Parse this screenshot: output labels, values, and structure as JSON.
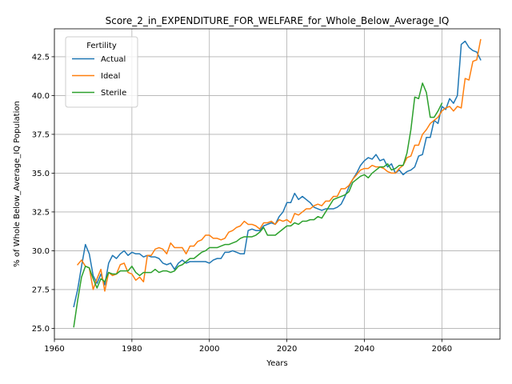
{
  "chart_data": {
    "type": "line",
    "title": "Score_2_in_EXPENDITURE_FOR_WELFARE_for_Whole_Below_Average_IQ",
    "xlabel": "Years",
    "ylabel": "% of Whole Below_Average_IQ Population",
    "xlim": [
      1960,
      2075
    ],
    "ylim": [
      24.3,
      44.3
    ],
    "xticks": [
      1960,
      1980,
      2000,
      2020,
      2040,
      2060
    ],
    "xtick_labels": [
      "1960",
      "1980",
      "2000",
      "2020",
      "2040",
      "2060"
    ],
    "yticks": [
      25.0,
      27.5,
      30.0,
      32.5,
      35.0,
      37.5,
      40.0,
      42.5
    ],
    "ytick_labels": [
      "25.0",
      "27.5",
      "30.0",
      "32.5",
      "35.0",
      "37.5",
      "40.0",
      "42.5"
    ],
    "grid": true,
    "legend": {
      "title": "Fertility",
      "placement": "top-left"
    },
    "series": [
      {
        "name": "Actual",
        "color": "#1f77b4",
        "points": [
          [
            1965,
            26.4
          ],
          [
            1966,
            27.5
          ],
          [
            1967,
            29.0
          ],
          [
            1968,
            30.4
          ],
          [
            1969,
            29.8
          ],
          [
            1970,
            28.4
          ],
          [
            1971,
            27.9
          ],
          [
            1972,
            28.5
          ],
          [
            1973,
            27.8
          ],
          [
            1974,
            29.2
          ],
          [
            1975,
            29.7
          ],
          [
            1976,
            29.5
          ],
          [
            1977,
            29.8
          ],
          [
            1978,
            30.0
          ],
          [
            1979,
            29.7
          ],
          [
            1980,
            29.9
          ],
          [
            1981,
            29.8
          ],
          [
            1982,
            29.8
          ],
          [
            1983,
            29.6
          ],
          [
            1984,
            29.7
          ],
          [
            1985,
            29.6
          ],
          [
            1986,
            29.6
          ],
          [
            1987,
            29.5
          ],
          [
            1988,
            29.2
          ],
          [
            1989,
            29.1
          ],
          [
            1990,
            29.2
          ],
          [
            1991,
            28.8
          ],
          [
            1992,
            29.2
          ],
          [
            1993,
            29.4
          ],
          [
            1994,
            29.2
          ],
          [
            1995,
            29.3
          ],
          [
            1996,
            29.3
          ],
          [
            1997,
            29.3
          ],
          [
            1998,
            29.3
          ],
          [
            1999,
            29.3
          ],
          [
            2000,
            29.2
          ],
          [
            2001,
            29.4
          ],
          [
            2002,
            29.5
          ],
          [
            2003,
            29.5
          ],
          [
            2004,
            29.9
          ],
          [
            2005,
            29.9
          ],
          [
            2006,
            30.0
          ],
          [
            2007,
            29.9
          ],
          [
            2008,
            29.8
          ],
          [
            2009,
            29.8
          ],
          [
            2010,
            31.3
          ],
          [
            2011,
            31.4
          ],
          [
            2012,
            31.3
          ],
          [
            2013,
            31.3
          ],
          [
            2014,
            31.6
          ],
          [
            2015,
            31.7
          ],
          [
            2016,
            31.8
          ],
          [
            2017,
            31.7
          ],
          [
            2018,
            32.2
          ],
          [
            2019,
            32.5
          ],
          [
            2020,
            33.1
          ],
          [
            2021,
            33.1
          ],
          [
            2022,
            33.7
          ],
          [
            2023,
            33.3
          ],
          [
            2024,
            33.5
          ],
          [
            2025,
            33.3
          ],
          [
            2026,
            33.1
          ],
          [
            2027,
            32.8
          ],
          [
            2028,
            32.7
          ],
          [
            2029,
            32.6
          ],
          [
            2030,
            32.7
          ],
          [
            2031,
            32.7
          ],
          [
            2032,
            32.7
          ],
          [
            2033,
            32.8
          ],
          [
            2034,
            33.0
          ],
          [
            2035,
            33.5
          ],
          [
            2036,
            34.1
          ],
          [
            2037,
            34.6
          ],
          [
            2038,
            35.0
          ],
          [
            2039,
            35.5
          ],
          [
            2040,
            35.8
          ],
          [
            2041,
            36.0
          ],
          [
            2042,
            35.9
          ],
          [
            2043,
            36.2
          ],
          [
            2044,
            35.8
          ],
          [
            2045,
            35.9
          ],
          [
            2046,
            35.4
          ],
          [
            2047,
            35.6
          ],
          [
            2048,
            35.0
          ],
          [
            2049,
            35.2
          ],
          [
            2050,
            34.9
          ],
          [
            2051,
            35.1
          ],
          [
            2052,
            35.2
          ],
          [
            2053,
            35.4
          ],
          [
            2054,
            36.1
          ],
          [
            2055,
            36.2
          ],
          [
            2056,
            37.3
          ],
          [
            2057,
            37.3
          ],
          [
            2058,
            38.4
          ],
          [
            2059,
            38.2
          ],
          [
            2060,
            39.3
          ],
          [
            2061,
            39.1
          ],
          [
            2062,
            39.8
          ],
          [
            2063,
            39.5
          ],
          [
            2064,
            40.0
          ],
          [
            2065,
            43.3
          ],
          [
            2066,
            43.5
          ],
          [
            2067,
            43.1
          ],
          [
            2068,
            42.9
          ],
          [
            2069,
            42.8
          ],
          [
            2070,
            42.3
          ]
        ]
      },
      {
        "name": "Ideal",
        "color": "#ff7f0e",
        "points": [
          [
            1966,
            29.1
          ],
          [
            1967,
            29.4
          ],
          [
            1968,
            29.0
          ],
          [
            1969,
            28.9
          ],
          [
            1970,
            27.5
          ],
          [
            1971,
            28.2
          ],
          [
            1972,
            28.8
          ],
          [
            1973,
            27.4
          ],
          [
            1974,
            28.6
          ],
          [
            1975,
            28.4
          ],
          [
            1976,
            28.5
          ],
          [
            1977,
            29.1
          ],
          [
            1978,
            29.2
          ],
          [
            1979,
            28.6
          ],
          [
            1980,
            28.5
          ],
          [
            1981,
            28.1
          ],
          [
            1982,
            28.3
          ],
          [
            1983,
            28.0
          ],
          [
            1984,
            29.7
          ],
          [
            1985,
            29.7
          ],
          [
            1986,
            30.1
          ],
          [
            1987,
            30.2
          ],
          [
            1988,
            30.1
          ],
          [
            1989,
            29.8
          ],
          [
            1990,
            30.5
          ],
          [
            1991,
            30.2
          ],
          [
            1992,
            30.2
          ],
          [
            1993,
            30.2
          ],
          [
            1994,
            29.8
          ],
          [
            1995,
            30.3
          ],
          [
            1996,
            30.3
          ],
          [
            1997,
            30.6
          ],
          [
            1998,
            30.7
          ],
          [
            1999,
            31.0
          ],
          [
            2000,
            31.0
          ],
          [
            2001,
            30.8
          ],
          [
            2002,
            30.8
          ],
          [
            2003,
            30.7
          ],
          [
            2004,
            30.8
          ],
          [
            2005,
            31.2
          ],
          [
            2006,
            31.3
          ],
          [
            2007,
            31.5
          ],
          [
            2008,
            31.6
          ],
          [
            2009,
            31.9
          ],
          [
            2010,
            31.7
          ],
          [
            2011,
            31.7
          ],
          [
            2012,
            31.6
          ],
          [
            2013,
            31.4
          ],
          [
            2014,
            31.8
          ],
          [
            2015,
            31.8
          ],
          [
            2016,
            31.9
          ],
          [
            2017,
            31.7
          ],
          [
            2018,
            32.0
          ],
          [
            2019,
            31.9
          ],
          [
            2020,
            32.0
          ],
          [
            2021,
            31.8
          ],
          [
            2022,
            32.4
          ],
          [
            2023,
            32.3
          ],
          [
            2024,
            32.5
          ],
          [
            2025,
            32.7
          ],
          [
            2026,
            32.7
          ],
          [
            2027,
            32.9
          ],
          [
            2028,
            33.0
          ],
          [
            2029,
            32.9
          ],
          [
            2030,
            33.2
          ],
          [
            2031,
            33.2
          ],
          [
            2032,
            33.5
          ],
          [
            2033,
            33.5
          ],
          [
            2034,
            34.0
          ],
          [
            2035,
            34.0
          ],
          [
            2036,
            34.2
          ],
          [
            2037,
            34.6
          ],
          [
            2038,
            34.9
          ],
          [
            2039,
            35.2
          ],
          [
            2040,
            35.3
          ],
          [
            2041,
            35.3
          ],
          [
            2042,
            35.5
          ],
          [
            2043,
            35.4
          ],
          [
            2044,
            35.4
          ],
          [
            2045,
            35.3
          ],
          [
            2046,
            35.1
          ],
          [
            2047,
            35.0
          ],
          [
            2048,
            35.0
          ],
          [
            2049,
            35.3
          ],
          [
            2050,
            35.5
          ],
          [
            2051,
            36.0
          ],
          [
            2052,
            36.1
          ],
          [
            2053,
            36.8
          ],
          [
            2054,
            36.8
          ],
          [
            2055,
            37.5
          ],
          [
            2056,
            37.8
          ],
          [
            2057,
            38.2
          ],
          [
            2058,
            38.4
          ],
          [
            2059,
            38.6
          ],
          [
            2060,
            39.0
          ],
          [
            2061,
            39.2
          ],
          [
            2062,
            39.3
          ],
          [
            2063,
            39.0
          ],
          [
            2064,
            39.3
          ],
          [
            2065,
            39.2
          ],
          [
            2066,
            41.1
          ],
          [
            2067,
            41.0
          ],
          [
            2068,
            42.2
          ],
          [
            2069,
            42.3
          ],
          [
            2070,
            43.6
          ]
        ]
      },
      {
        "name": "Sterile",
        "color": "#2ca02c",
        "points": [
          [
            1965,
            25.1
          ],
          [
            1966,
            26.8
          ],
          [
            1967,
            28.3
          ],
          [
            1968,
            29.0
          ],
          [
            1969,
            28.9
          ],
          [
            1970,
            28.2
          ],
          [
            1971,
            27.6
          ],
          [
            1972,
            28.2
          ],
          [
            1973,
            28.0
          ],
          [
            1974,
            28.6
          ],
          [
            1975,
            28.5
          ],
          [
            1976,
            28.5
          ],
          [
            1977,
            28.7
          ],
          [
            1978,
            28.7
          ],
          [
            1979,
            28.7
          ],
          [
            1980,
            29.0
          ],
          [
            1981,
            28.6
          ],
          [
            1982,
            28.4
          ],
          [
            1983,
            28.6
          ],
          [
            1984,
            28.6
          ],
          [
            1985,
            28.6
          ],
          [
            1986,
            28.8
          ],
          [
            1987,
            28.6
          ],
          [
            1988,
            28.7
          ],
          [
            1989,
            28.7
          ],
          [
            1990,
            28.6
          ],
          [
            1991,
            28.7
          ],
          [
            1992,
            29.0
          ],
          [
            1993,
            29.1
          ],
          [
            1994,
            29.3
          ],
          [
            1995,
            29.5
          ],
          [
            1996,
            29.5
          ],
          [
            1997,
            29.7
          ],
          [
            1998,
            29.9
          ],
          [
            1999,
            30.0
          ],
          [
            2000,
            30.2
          ],
          [
            2001,
            30.2
          ],
          [
            2002,
            30.2
          ],
          [
            2003,
            30.3
          ],
          [
            2004,
            30.4
          ],
          [
            2005,
            30.4
          ],
          [
            2006,
            30.5
          ],
          [
            2007,
            30.6
          ],
          [
            2008,
            30.8
          ],
          [
            2009,
            30.9
          ],
          [
            2010,
            30.9
          ],
          [
            2011,
            30.9
          ],
          [
            2012,
            31.0
          ],
          [
            2013,
            31.2
          ],
          [
            2014,
            31.5
          ],
          [
            2015,
            31.0
          ],
          [
            2016,
            31.0
          ],
          [
            2017,
            31.0
          ],
          [
            2018,
            31.2
          ],
          [
            2019,
            31.4
          ],
          [
            2020,
            31.6
          ],
          [
            2021,
            31.6
          ],
          [
            2022,
            31.8
          ],
          [
            2023,
            31.7
          ],
          [
            2024,
            31.9
          ],
          [
            2025,
            31.9
          ],
          [
            2026,
            32.0
          ],
          [
            2027,
            32.0
          ],
          [
            2028,
            32.2
          ],
          [
            2029,
            32.1
          ],
          [
            2030,
            32.5
          ],
          [
            2031,
            32.9
          ],
          [
            2032,
            33.3
          ],
          [
            2033,
            33.4
          ],
          [
            2034,
            33.5
          ],
          [
            2035,
            33.6
          ],
          [
            2036,
            33.8
          ],
          [
            2037,
            34.4
          ],
          [
            2038,
            34.6
          ],
          [
            2039,
            34.8
          ],
          [
            2040,
            34.9
          ],
          [
            2041,
            34.7
          ],
          [
            2042,
            35.0
          ],
          [
            2043,
            35.2
          ],
          [
            2044,
            35.4
          ],
          [
            2045,
            35.4
          ],
          [
            2046,
            35.6
          ],
          [
            2047,
            35.2
          ],
          [
            2048,
            35.3
          ],
          [
            2049,
            35.5
          ],
          [
            2050,
            35.5
          ],
          [
            2051,
            36.3
          ],
          [
            2052,
            37.8
          ],
          [
            2053,
            39.9
          ],
          [
            2054,
            39.8
          ],
          [
            2055,
            40.8
          ],
          [
            2056,
            40.2
          ],
          [
            2057,
            38.6
          ],
          [
            2058,
            38.6
          ],
          [
            2059,
            39.0
          ],
          [
            2060,
            39.5
          ]
        ]
      }
    ]
  }
}
